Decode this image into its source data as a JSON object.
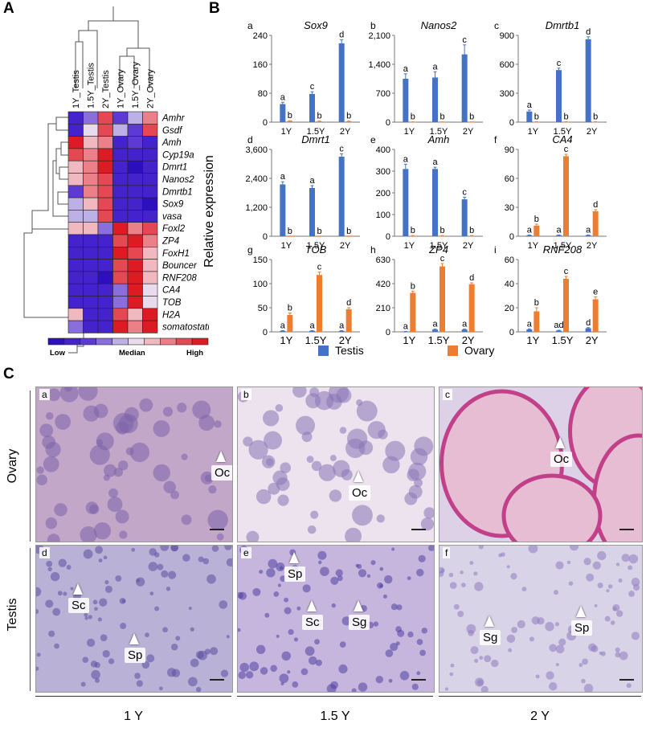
{
  "panels": {
    "A": "A",
    "B": "B",
    "C": "C"
  },
  "heatmap": {
    "columns": [
      "1Y_Testis",
      "1.5Y_Testis",
      "2Y_Testis",
      "1Y_Ovary",
      "1.5Y_Ovary",
      "2Y_Ovary"
    ],
    "rows": [
      "Amhr",
      "Gsdf",
      "Amh",
      "Cyp19a",
      "Dmrt1",
      "Nanos2",
      "Dmrtb1",
      "Sox9",
      "vasa",
      "Foxl2",
      "ZP4",
      "FoxH1",
      "Bouncer",
      "RNF208",
      "CA4",
      "TOB",
      "H2A",
      "somatostatin"
    ],
    "levels": [
      [
        1,
        3,
        8,
        2,
        4,
        7
      ],
      [
        1,
        5,
        8,
        4,
        2,
        8
      ],
      [
        9,
        6,
        7,
        1,
        2,
        1
      ],
      [
        8,
        7,
        9,
        1,
        1,
        1
      ],
      [
        6,
        7,
        9,
        1,
        0,
        1
      ],
      [
        6,
        7,
        8,
        1,
        1,
        1
      ],
      [
        2,
        7,
        8,
        1,
        1,
        1
      ],
      [
        4,
        6,
        8,
        1,
        1,
        0
      ],
      [
        4,
        4,
        8,
        1,
        1,
        1
      ],
      [
        6,
        6,
        3,
        9,
        7,
        8
      ],
      [
        1,
        1,
        1,
        8,
        9,
        7
      ],
      [
        1,
        1,
        1,
        9,
        8,
        6
      ],
      [
        1,
        1,
        1,
        8,
        9,
        6
      ],
      [
        1,
        1,
        0,
        8,
        9,
        6
      ],
      [
        1,
        1,
        1,
        3,
        9,
        5
      ],
      [
        1,
        1,
        1,
        3,
        9,
        5
      ],
      [
        6,
        1,
        1,
        8,
        6,
        9
      ],
      [
        3,
        1,
        1,
        9,
        7,
        9
      ]
    ],
    "scale_labels": {
      "low": "Low",
      "median": "Median",
      "high": "High"
    },
    "colors": [
      "#2d0fbf",
      "#4423cc",
      "#5e3ad4",
      "#8a6fdc",
      "#bdb0e6",
      "#e8dcec",
      "#f0b8bf",
      "#ec8088",
      "#e54852",
      "#dc1c22"
    ]
  },
  "bar_charts": {
    "y_axis_label": "Relative expression",
    "colors": {
      "testis": "#4472c4",
      "ovary": "#ed7d31"
    },
    "legend": {
      "testis": "Testis",
      "ovary": "Ovary"
    },
    "charts": [
      {
        "letter": "a",
        "gene": "Sox9",
        "yticks": [
          "0",
          "80",
          "160",
          "240"
        ],
        "ymax": 240,
        "cats": [
          "1Y",
          "1.5Y",
          "2Y"
        ],
        "testis": [
          50,
          78,
          218
        ],
        "ovary": [
          3,
          2,
          2
        ],
        "terr": [
          5,
          6,
          10
        ],
        "oerr": [
          1,
          1,
          1
        ],
        "tlabels": [
          "a",
          "c",
          "d"
        ],
        "olabels": [
          "b",
          "b",
          "b"
        ]
      },
      {
        "letter": "b",
        "gene": "Nanos2",
        "yticks": [
          "0",
          "700",
          "1,400",
          "2,100"
        ],
        "ymax": 2100,
        "cats": [
          "1Y",
          "1.5Y",
          "2Y"
        ],
        "testis": [
          1050,
          1080,
          1640
        ],
        "ovary": [
          5,
          5,
          5
        ],
        "terr": [
          120,
          140,
          230
        ],
        "oerr": [
          2,
          2,
          2
        ],
        "tlabels": [
          "a",
          "a",
          "c"
        ],
        "olabels": [
          "b",
          "b",
          "b"
        ]
      },
      {
        "letter": "c",
        "gene": "Dmrtb1",
        "yticks": [
          "0",
          "300",
          "600",
          "900"
        ],
        "ymax": 900,
        "cats": [
          "1Y",
          "1.5Y",
          "2Y"
        ],
        "testis": [
          110,
          540,
          860
        ],
        "ovary": [
          3,
          3,
          3
        ],
        "terr": [
          15,
          20,
          25
        ],
        "oerr": [
          1,
          1,
          1
        ],
        "tlabels": [
          "a",
          "c",
          "d"
        ],
        "olabels": [
          "b",
          "b",
          "b"
        ]
      },
      {
        "letter": "d",
        "gene": "Dmrt1",
        "yticks": [
          "0",
          "1,200",
          "2,400",
          "3,600"
        ],
        "ymax": 3600,
        "cats": [
          "1Y",
          "1.5Y",
          "2Y"
        ],
        "testis": [
          2150,
          2000,
          3300
        ],
        "ovary": [
          5,
          5,
          5
        ],
        "terr": [
          110,
          100,
          120
        ],
        "oerr": [
          2,
          2,
          2
        ],
        "tlabels": [
          "a",
          "a",
          "c"
        ],
        "olabels": [
          "b",
          "b",
          "b"
        ]
      },
      {
        "letter": "e",
        "gene": "Amh",
        "yticks": [
          "0",
          "100",
          "200",
          "300",
          "400"
        ],
        "ymax": 400,
        "cats": [
          "1Y",
          "1.5Y",
          "2Y"
        ],
        "testis": [
          310,
          310,
          170
        ],
        "ovary": [
          2,
          2,
          2
        ],
        "terr": [
          22,
          8,
          10
        ],
        "oerr": [
          1,
          1,
          1
        ],
        "tlabels": [
          "a",
          "a",
          "c"
        ],
        "olabels": [
          "b",
          "b",
          "b"
        ]
      },
      {
        "letter": "f",
        "gene": "CA4",
        "yticks": [
          "0",
          "30",
          "60",
          "90"
        ],
        "ymax": 90,
        "cats": [
          "1Y",
          "1.5Y",
          "2Y"
        ],
        "testis": [
          1,
          1,
          1
        ],
        "ovary": [
          11,
          83,
          26
        ],
        "terr": [
          0.3,
          0.3,
          0.3
        ],
        "oerr": [
          1.5,
          2,
          1.5
        ],
        "tlabels": [
          "a",
          "a",
          "a"
        ],
        "olabels": [
          "b",
          "c",
          "d"
        ]
      },
      {
        "letter": "g",
        "gene": "TOB",
        "yticks": [
          "0",
          "50",
          "100",
          "150"
        ],
        "ymax": 150,
        "cats": [
          "1Y",
          "1.5Y",
          "2Y"
        ],
        "testis": [
          2,
          2,
          2
        ],
        "ovary": [
          35,
          118,
          47
        ],
        "terr": [
          0.5,
          0.5,
          0.5
        ],
        "oerr": [
          4,
          6,
          3
        ],
        "tlabels": [
          "a",
          "a",
          "a"
        ],
        "olabels": [
          "b",
          "c",
          "d"
        ]
      },
      {
        "letter": "h",
        "gene": "ZP4",
        "yticks": [
          "0",
          "210",
          "420",
          "630"
        ],
        "ymax": 630,
        "cats": [
          "1Y",
          "1.5Y",
          "2Y"
        ],
        "testis": [
          3,
          20,
          20
        ],
        "ovary": [
          340,
          570,
          415
        ],
        "terr": [
          1,
          4,
          4
        ],
        "oerr": [
          15,
          25,
          12
        ],
        "tlabels": [
          "a",
          "a",
          "a"
        ],
        "olabels": [
          "b",
          "c",
          "d"
        ]
      },
      {
        "letter": "i",
        "gene": "RNF208",
        "yticks": [
          "0",
          "20",
          "40",
          "60"
        ],
        "ymax": 60,
        "cats": [
          "1Y",
          "1.5Y",
          "2Y"
        ],
        "testis": [
          2,
          1,
          3
        ],
        "ovary": [
          17,
          44,
          27
        ],
        "terr": [
          0.5,
          0.3,
          0.5
        ],
        "oerr": [
          3,
          2,
          2
        ],
        "tlabels": [
          "a",
          "ad",
          "d"
        ],
        "olabels": [
          "b",
          "c",
          "e"
        ]
      }
    ]
  },
  "micrographs": {
    "row_labels": [
      "Ovary",
      "Testis"
    ],
    "age_labels": [
      "1 Y",
      "1.5 Y",
      "2 Y"
    ],
    "panels": [
      {
        "id": "a",
        "labels": [
          "Oc"
        ],
        "bg": "#c2a7c9",
        "dots": "#7d62a9"
      },
      {
        "id": "b",
        "labels": [
          "Oc"
        ],
        "bg": "#ece3ee",
        "dots": "#8a75b6"
      },
      {
        "id": "c",
        "labels": [
          "Oc"
        ],
        "bg": "#dcd1e6",
        "dots": "#c2408a"
      },
      {
        "id": "d",
        "labels": [
          "Sc",
          "Sp"
        ],
        "bg": "#b9b2d6",
        "dots": "#5c4fa3"
      },
      {
        "id": "e",
        "labels": [
          "Sp",
          "Sc",
          "Sg"
        ],
        "bg": "#c6b5dd",
        "dots": "#5140a0"
      },
      {
        "id": "f",
        "labels": [
          "Sg",
          "Sp"
        ],
        "bg": "#d8d3e6",
        "dots": "#8f7cbf"
      }
    ]
  }
}
